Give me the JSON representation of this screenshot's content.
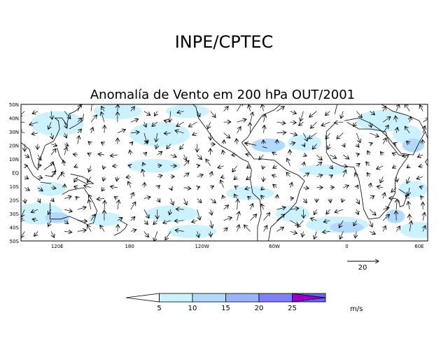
{
  "header": {
    "org": "INPE/CPTEC",
    "title": "Anomalía de Vento em 200 hPa OUT/2001"
  },
  "map": {
    "lat_labels": [
      "50N",
      "40N",
      "30N",
      "20N",
      "10N",
      "EQ",
      "10S",
      "20S",
      "30S",
      "40S",
      "50S"
    ],
    "lon_labels": [
      "120E",
      "180",
      "120W",
      "60W",
      "0",
      "60E"
    ],
    "lat_range": [
      -50,
      50
    ],
    "lon_range_east": [
      90,
      427
    ],
    "colors": {
      "land": "#000000",
      "shade_5": "#ccf2ff",
      "shade_10": "#b3d9ff",
      "shade_15": "#99b3ff",
      "shade_20": "#8080ff"
    }
  },
  "reference_vector": {
    "label": "20"
  },
  "colorbar": {
    "ticks": [
      "5",
      "10",
      "15",
      "20",
      "25"
    ],
    "unit": "m/s",
    "colors": [
      "#ffffff",
      "#ccf2ff",
      "#b3d9ff",
      "#99b3ff",
      "#8080ff",
      "#6666ff",
      "#9900cc"
    ]
  }
}
